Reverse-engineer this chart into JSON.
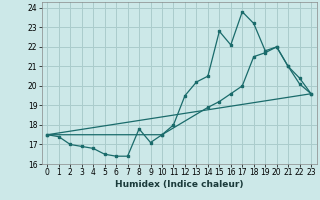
{
  "xlabel": "Humidex (Indice chaleur)",
  "background_color": "#cce8e8",
  "grid_color": "#aacccc",
  "line_color": "#1a6b6b",
  "xlim": [
    -0.5,
    23.5
  ],
  "ylim": [
    16.0,
    24.3
  ],
  "xticks": [
    0,
    1,
    2,
    3,
    4,
    5,
    6,
    7,
    8,
    9,
    10,
    11,
    12,
    13,
    14,
    15,
    16,
    17,
    18,
    19,
    20,
    21,
    22,
    23
  ],
  "yticks": [
    16,
    17,
    18,
    19,
    20,
    21,
    22,
    23,
    24
  ],
  "curve1_x": [
    0,
    1,
    2,
    3,
    4,
    5,
    6,
    7,
    8,
    9,
    10,
    11,
    12,
    13,
    14,
    15,
    16,
    17,
    18,
    19,
    20,
    21,
    22,
    23
  ],
  "curve1_y": [
    17.5,
    17.4,
    17.0,
    16.9,
    16.8,
    16.5,
    16.4,
    16.4,
    17.8,
    17.1,
    17.5,
    18.0,
    19.5,
    20.2,
    20.5,
    22.8,
    22.1,
    23.8,
    23.2,
    21.8,
    22.0,
    21.0,
    20.1,
    19.6
  ],
  "curve2_x": [
    0,
    23
  ],
  "curve2_y": [
    17.5,
    19.6
  ],
  "curve3_x": [
    0,
    10,
    14,
    15,
    16,
    17,
    18,
    19,
    20,
    21,
    22,
    23
  ],
  "curve3_y": [
    17.5,
    17.5,
    18.9,
    19.2,
    19.6,
    20.0,
    21.5,
    21.7,
    22.0,
    21.0,
    20.4,
    19.6
  ]
}
